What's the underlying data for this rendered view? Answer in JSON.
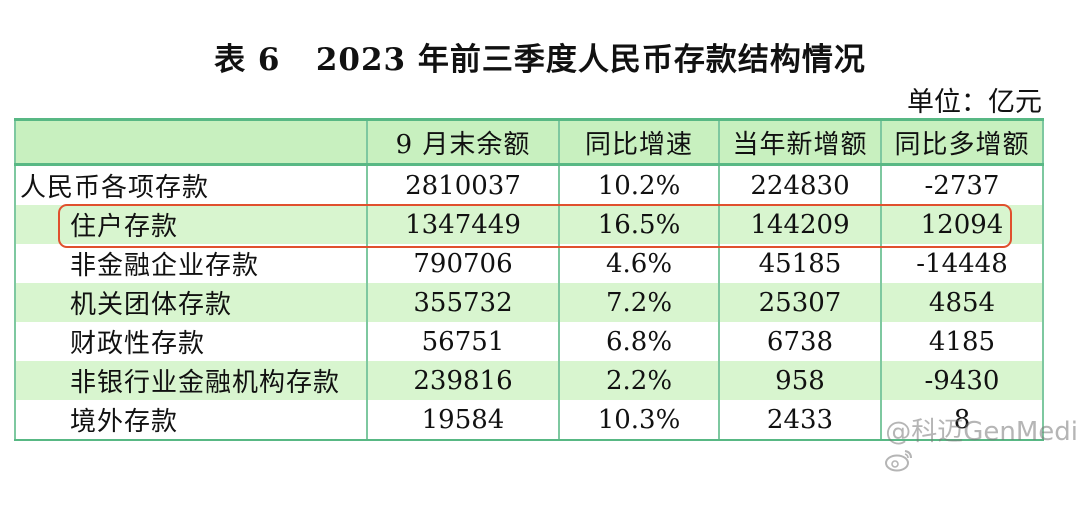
{
  "title": "表 6   2023 年前三季度人民币存款结构情况",
  "unit": "单位：亿元",
  "table": {
    "headers": [
      "",
      "9 月末余额",
      "同比增速",
      "当年新增额",
      "同比多增额"
    ],
    "rows": [
      {
        "label": "人民币各项存款",
        "balance": "2810037",
        "yoy_growth": "10.2%",
        "new_increase": "224830",
        "yoy_more": "-2737"
      },
      {
        "label": "住户存款",
        "balance": "1347449",
        "yoy_growth": "16.5%",
        "new_increase": "144209",
        "yoy_more": "12094"
      },
      {
        "label": "非金融企业存款",
        "balance": "790706",
        "yoy_growth": "4.6%",
        "new_increase": "45185",
        "yoy_more": "-14448"
      },
      {
        "label": "机关团体存款",
        "balance": "355732",
        "yoy_growth": "7.2%",
        "new_increase": "25307",
        "yoy_more": "4854"
      },
      {
        "label": "财政性存款",
        "balance": "56751",
        "yoy_growth": "6.8%",
        "new_increase": "6738",
        "yoy_more": "4185"
      },
      {
        "label": "非银行业金融机构存款",
        "balance": "239816",
        "yoy_growth": "2.2%",
        "new_increase": "958",
        "yoy_more": "-9430"
      },
      {
        "label": "境外存款",
        "balance": "19584",
        "yoy_growth": "10.3%",
        "new_increase": "2433",
        "yoy_more": "8"
      }
    ]
  },
  "highlighted_row": "住户存款",
  "colors": {
    "header_fill": "#c8f0bf",
    "stripe_fill": "#d8f5cf",
    "rule": "#58b884",
    "highlight_border": "#e0502e"
  },
  "watermark": {
    "icon": "weibo-icon",
    "text": "@科迈GenMedi"
  }
}
